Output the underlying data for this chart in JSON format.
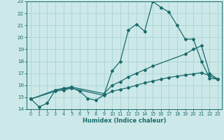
{
  "xlabel": "Humidex (Indice chaleur)",
  "x_all": [
    0,
    1,
    2,
    3,
    4,
    5,
    6,
    7,
    8,
    9,
    10,
    11,
    12,
    13,
    14,
    15,
    16,
    17,
    18,
    19,
    20,
    21,
    22,
    23
  ],
  "line1_x": [
    0,
    1,
    2,
    3,
    4,
    5,
    6,
    7,
    8,
    9,
    10,
    11,
    12,
    13,
    14,
    15,
    16,
    17,
    18,
    19,
    20,
    21,
    22,
    23
  ],
  "line1_y": [
    14.85,
    14.2,
    14.5,
    15.6,
    15.7,
    15.8,
    15.5,
    14.9,
    14.75,
    15.2,
    17.2,
    18.0,
    20.6,
    21.1,
    20.5,
    23.0,
    22.5,
    22.1,
    21.0,
    19.85,
    19.85,
    18.0,
    16.6,
    16.5
  ],
  "line2_x": [
    0,
    3,
    4,
    5,
    9,
    10,
    11,
    12,
    13,
    14,
    15,
    19,
    20,
    21,
    22,
    23
  ],
  "line2_y": [
    14.85,
    15.6,
    15.75,
    15.85,
    15.3,
    16.0,
    16.3,
    16.7,
    17.0,
    17.3,
    17.6,
    18.6,
    19.0,
    19.3,
    17.0,
    16.5
  ],
  "line3_x": [
    0,
    3,
    4,
    5,
    9,
    10,
    11,
    12,
    13,
    14,
    15,
    16,
    17,
    18,
    19,
    20,
    21,
    22,
    23
  ],
  "line3_y": [
    14.85,
    15.5,
    15.6,
    15.75,
    15.15,
    15.5,
    15.65,
    15.8,
    16.0,
    16.2,
    16.35,
    16.5,
    16.65,
    16.75,
    16.85,
    16.95,
    17.05,
    16.8,
    16.5
  ],
  "line_color": "#1a6b6b",
  "bg_color": "#cce8e8",
  "grid_color": "#aad4d4",
  "ylim": [
    14,
    23
  ],
  "xlim": [
    -0.5,
    23.5
  ],
  "yticks": [
    14,
    15,
    16,
    17,
    18,
    19,
    20,
    21,
    22,
    23
  ],
  "xticks": [
    0,
    1,
    2,
    3,
    4,
    5,
    6,
    7,
    8,
    9,
    10,
    11,
    12,
    13,
    14,
    15,
    16,
    17,
    18,
    19,
    20,
    21,
    22,
    23
  ]
}
